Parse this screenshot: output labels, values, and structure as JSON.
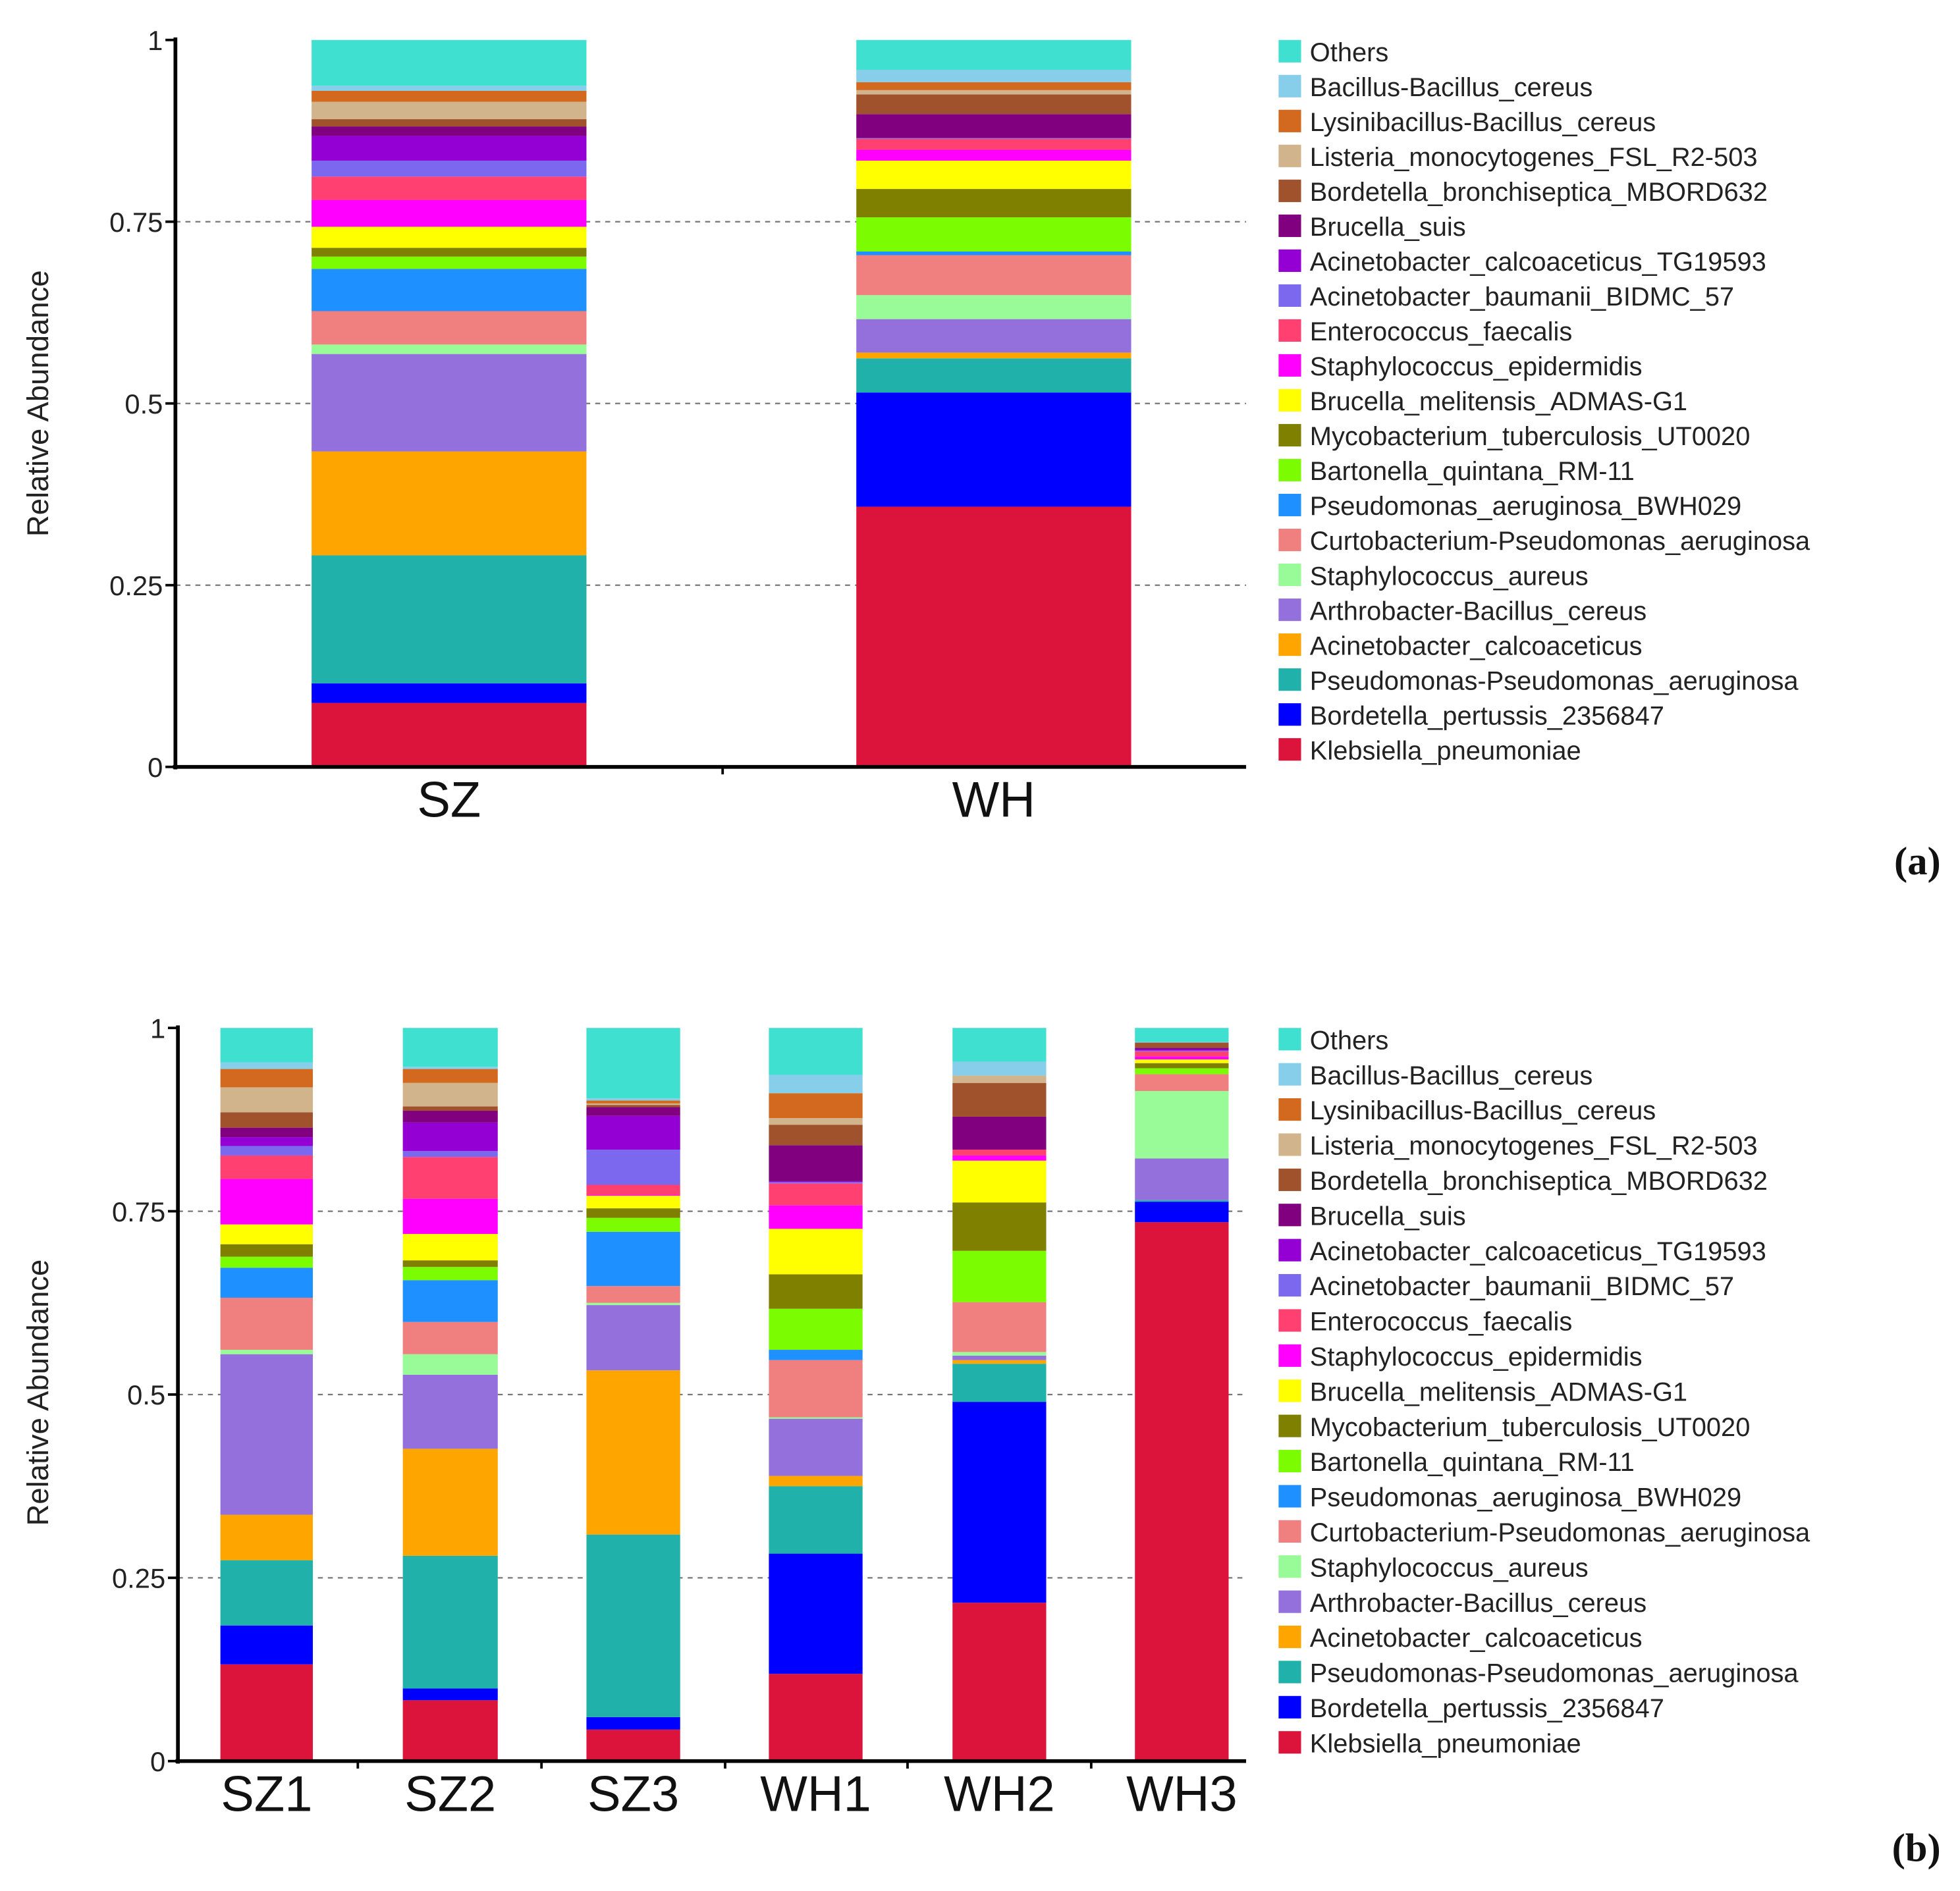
{
  "species_stack_order": [
    "Klebsiella_pneumoniae",
    "Bordetella_pertussis_2356847",
    "Pseudomonas-Pseudomonas_aeruginosa",
    "Acinetobacter_calcoaceticus",
    "Arthrobacter-Bacillus_cereus",
    "Staphylococcus_aureus",
    "Curtobacterium-Pseudomonas_aeruginosa",
    "Pseudomonas_aeruginosa_BWH029",
    "Bartonella_quintana_RM-11",
    "Mycobacterium_tuberculosis_UT0020",
    "Brucella_melitensis_ADMAS-G1",
    "Staphylococcus_epidermidis",
    "Enterococcus_faecalis",
    "Acinetobacter_baumanii_BIDMC_57",
    "Acinetobacter_calcoaceticus_TG19593",
    "Brucella_suis",
    "Bordetella_bronchiseptica_MBORD632",
    "Listeria_monocytogenes_FSL_R2-503",
    "Lysinibacillus-Bacillus_cereus",
    "Bacillus-Bacillus_cereus",
    "Others"
  ],
  "colors": [
    "#DC143C",
    "#0000FF",
    "#20B2AA",
    "#FFA500",
    "#9370DB",
    "#98FB98",
    "#F08080",
    "#1E90FF",
    "#7CFC00",
    "#808000",
    "#FFFF00",
    "#FF00FF",
    "#FF4070",
    "#7B68EE",
    "#9400D3",
    "#800080",
    "#A0522D",
    "#D2B48C",
    "#D2691E",
    "#87CEEB",
    "#40E0D0"
  ],
  "chart_data": [
    {
      "type": "bar",
      "stacked": true,
      "panel_label": "(a)",
      "ylabel": "Relative Abundance",
      "ylim": [
        0,
        1
      ],
      "yticks": [
        "0",
        "0.25",
        "0.5",
        "0.75",
        "1"
      ],
      "grid": "dashed at 0.25, 0.5, 0.75",
      "legend_placement": "right",
      "legend_title_order": "Others at top, Klebsiella_pneumoniae at bottom",
      "categories": [
        "SZ",
        "WH"
      ],
      "cumulative_top_by_species": {
        "SZ": [
          0.088,
          0.115,
          0.291,
          0.434,
          0.568,
          0.581,
          0.627,
          0.685,
          0.702,
          0.714,
          0.743,
          0.78,
          0.812,
          0.834,
          0.868,
          0.881,
          0.891,
          0.915,
          0.93,
          0.937,
          1.0
        ],
        "WH": [
          0.358,
          0.515,
          0.562,
          0.57,
          0.616,
          0.649,
          0.704,
          0.709,
          0.756,
          0.795,
          0.834,
          0.849,
          0.864,
          0.865,
          0.865,
          0.898,
          0.925,
          0.931,
          0.942,
          0.959,
          1.0
        ]
      }
    },
    {
      "type": "bar",
      "stacked": true,
      "panel_label": "(b)",
      "ylabel": "Relative Abundance",
      "ylim": [
        0,
        1
      ],
      "yticks": [
        "0",
        "0.25",
        "0.5",
        "0.75",
        "1"
      ],
      "grid": "dashed at 0.25, 0.5, 0.75",
      "legend_placement": "right",
      "categories": [
        "SZ1",
        "SZ2",
        "SZ3",
        "WH1",
        "WH2",
        "WH3"
      ],
      "cumulative_top_by_species": {
        "SZ1": [
          0.132,
          0.185,
          0.274,
          0.336,
          0.555,
          0.561,
          0.632,
          0.673,
          0.688,
          0.705,
          0.732,
          0.794,
          0.826,
          0.839,
          0.851,
          0.864,
          0.885,
          0.919,
          0.944,
          0.953,
          1.0
        ],
        "SZ2": [
          0.083,
          0.099,
          0.28,
          0.426,
          0.527,
          0.555,
          0.599,
          0.656,
          0.674,
          0.683,
          0.719,
          0.767,
          0.824,
          0.832,
          0.871,
          0.887,
          0.893,
          0.925,
          0.944,
          0.947,
          1.0
        ],
        "SZ3": [
          0.043,
          0.06,
          0.309,
          0.533,
          0.622,
          0.625,
          0.648,
          0.722,
          0.741,
          0.754,
          0.771,
          0.772,
          0.786,
          0.834,
          0.88,
          0.892,
          0.895,
          0.897,
          0.901,
          0.904,
          1.0
        ],
        "WH1": [
          0.119,
          0.283,
          0.375,
          0.389,
          0.467,
          0.469,
          0.547,
          0.561,
          0.617,
          0.664,
          0.726,
          0.758,
          0.788,
          0.79,
          0.791,
          0.84,
          0.868,
          0.877,
          0.911,
          0.936,
          1.0
        ],
        "WH2": [
          0.216,
          0.49,
          0.542,
          0.547,
          0.553,
          0.558,
          0.626,
          0.626,
          0.696,
          0.762,
          0.819,
          0.826,
          0.834,
          0.834,
          0.834,
          0.879,
          0.925,
          0.935,
          0.935,
          0.954,
          1.0
        ],
        "WH3": [
          0.735,
          0.763,
          0.765,
          0.765,
          0.822,
          0.914,
          0.937,
          0.937,
          0.945,
          0.952,
          0.957,
          0.961,
          0.968,
          0.969,
          0.971,
          0.973,
          0.98,
          0.98,
          0.98,
          0.981,
          1.0
        ]
      }
    }
  ]
}
